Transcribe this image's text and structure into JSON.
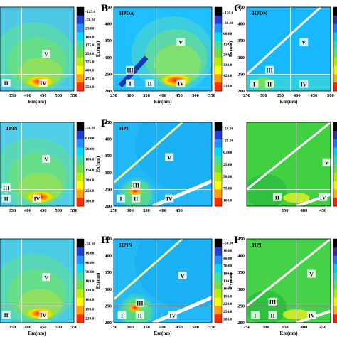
{
  "panels": [
    {
      "letter": "",
      "title": "",
      "xlabel": "Em(nm)",
      "ylabel": "",
      "xticks": [
        "350",
        "400",
        "450",
        "500",
        "550"
      ],
      "yticks": [],
      "colorbar_ticks": [
        "-125.0",
        "-50.00",
        "25.00",
        "100.0",
        "175.0",
        "250.0",
        "325.0",
        "400.0",
        "475.0",
        "550.0"
      ],
      "regions": [
        {
          "label": "I",
          "x": 250,
          "y": 255
        },
        {
          "label": "II",
          "x": 330,
          "y": 223
        },
        {
          "label": "IV",
          "x": 450,
          "y": 223
        },
        {
          "label": "V",
          "x": 460,
          "y": 310
        }
      ]
    },
    {
      "letter": "B",
      "title": "HPOA",
      "xlabel": "Em(nm)",
      "ylabel": "Ex(nm)",
      "xticks": [
        "250",
        "300",
        "350",
        "400",
        "450",
        "500",
        "550"
      ],
      "yticks": [
        "200",
        "250",
        "300",
        "350",
        "400",
        "450"
      ],
      "colorbar_ticks": [
        "-120.0",
        "-30.00",
        "60.00",
        "150.0",
        "240.0",
        "330.0",
        "420.0",
        "510.0"
      ],
      "colorbar_ticks_b": [
        "1320",
        "1510",
        "1700"
      ],
      "regions": [
        {
          "label": "I",
          "x": 300,
          "y": 222
        },
        {
          "label": "II",
          "x": 360,
          "y": 222
        },
        {
          "label": "III",
          "x": 300,
          "y": 262
        },
        {
          "label": "IV",
          "x": 455,
          "y": 222
        },
        {
          "label": "V",
          "x": 455,
          "y": 345
        }
      ]
    },
    {
      "letter": "C",
      "title": "HPON",
      "xlabel": "Em(nm)",
      "ylabel": "Ex(nm)",
      "xticks": [
        "250",
        "300",
        "350",
        "400",
        "450",
        "500"
      ],
      "yticks": [
        "200",
        "250",
        "300",
        "350",
        "400",
        "450"
      ],
      "colorbar_ticks": [
        "-36.00",
        "18.00",
        "72.00",
        "126.0",
        "180.0",
        "234.0",
        "288.0",
        "342.0"
      ],
      "regions": [
        {
          "label": "I",
          "x": 272,
          "y": 220
        },
        {
          "label": "II",
          "x": 318,
          "y": 220
        },
        {
          "label": "III",
          "x": 318,
          "y": 262
        },
        {
          "label": "IV",
          "x": 420,
          "y": 220
        },
        {
          "label": "V",
          "x": 420,
          "y": 345
        }
      ]
    },
    {
      "letter": "E",
      "title": "TPIN",
      "xlabel": "",
      "ylabel": "Ex(nm)",
      "xticks": [
        "250",
        "300",
        "350",
        "400",
        "450",
        "500",
        "550"
      ],
      "yticks": [
        "200",
        "250",
        "300",
        "350",
        "400",
        "450"
      ],
      "colorbar_ticks": [
        "-50.00",
        "0.000",
        "50.00",
        "100.0",
        "150.0",
        "200.0",
        "250.0",
        "300.0"
      ],
      "regions": [
        {
          "label": "I",
          "x": 275,
          "y": 222
        },
        {
          "label": "II",
          "x": 330,
          "y": 222
        },
        {
          "label": "III",
          "x": 330,
          "y": 255
        },
        {
          "label": "IV",
          "x": 430,
          "y": 222
        },
        {
          "label": "V",
          "x": 460,
          "y": 340
        }
      ]
    },
    {
      "letter": "F",
      "title": "HPI",
      "xlabel": "",
      "ylabel": "Ex(nm)",
      "xticks": [
        "250",
        "300",
        "350",
        "400",
        "450"
      ],
      "yticks": [
        "200",
        "250",
        "300",
        "350",
        "400",
        "450"
      ],
      "colorbar_ticks": [
        "-50.00",
        "-25.00",
        "0.000",
        "25.00",
        "50.00",
        "75.00",
        "100.0"
      ],
      "regions": [
        {
          "label": "I",
          "x": 272,
          "y": 222
        },
        {
          "label": "II",
          "x": 318,
          "y": 222
        },
        {
          "label": "III",
          "x": 318,
          "y": 262
        },
        {
          "label": "IV",
          "x": 420,
          "y": 222
        },
        {
          "label": "V",
          "x": 420,
          "y": 345
        }
      ]
    },
    {
      "letter": "",
      "title": "",
      "xlabel": "",
      "ylabel": "",
      "xticks": [
        "350",
        "400",
        "450",
        "500",
        "550"
      ],
      "yticks": [],
      "colorbar_ticks": [
        "-50.00",
        "0.000",
        "50.00",
        "100.0",
        "150.0",
        "200.0",
        "250.0"
      ],
      "regions": [
        {
          "label": "II",
          "x": 330,
          "y": 226
        },
        {
          "label": "IV",
          "x": 450,
          "y": 226
        },
        {
          "label": "V",
          "x": 460,
          "y": 330
        }
      ]
    },
    {
      "letter": "",
      "title": "",
      "xlabel": "Em(nm)",
      "ylabel": "",
      "xticks": [
        "350",
        "400",
        "450",
        "500",
        "550"
      ],
      "yticks": [],
      "colorbar_ticks": [
        "-50.00",
        "10.00",
        "40.00",
        "70.00",
        "100.0",
        "130.0",
        "160.0",
        "190.0",
        "220.0"
      ],
      "regions": [
        {
          "label": "II",
          "x": 330,
          "y": 223
        },
        {
          "label": "IV",
          "x": 450,
          "y": 223
        },
        {
          "label": "V",
          "x": 460,
          "y": 335
        }
      ]
    },
    {
      "letter": "H",
      "title": "HPIN",
      "xlabel": "Em(nm)",
      "ylabel": "Ex(nm)",
      "xticks": [
        "250",
        "300",
        "350",
        "400",
        "450",
        "500",
        "550"
      ],
      "yticks": [
        "200",
        "250",
        "300",
        "350",
        "400",
        "450"
      ],
      "colorbar_ticks": [
        "-50.00",
        "10.00",
        "40.00",
        "70.00",
        "100.0",
        "130.0",
        "160.0",
        "190.0",
        "220.0",
        "250.0",
        "280.0"
      ],
      "regions": [
        {
          "label": "I",
          "x": 275,
          "y": 222
        },
        {
          "label": "II",
          "x": 330,
          "y": 222
        },
        {
          "label": "III",
          "x": 330,
          "y": 258
        },
        {
          "label": "IV",
          "x": 430,
          "y": 222
        },
        {
          "label": "V",
          "x": 460,
          "y": 340
        }
      ]
    },
    {
      "letter": "I",
      "title": "HPI",
      "xlabel": "Em(nm)",
      "ylabel": "Ex(nm)",
      "xticks": [
        "250",
        "300",
        "350",
        "400",
        "450"
      ],
      "yticks": [
        "200",
        "250",
        "300",
        "350",
        "400",
        "450"
      ],
      "colorbar_ticks": [
        "-50.00",
        "-30.00",
        "-10.00",
        "10.00",
        "30.00",
        "50.00",
        "70.00"
      ],
      "regions": [
        {
          "label": "I",
          "x": 272,
          "y": 222
        },
        {
          "label": "II",
          "x": 318,
          "y": 222
        },
        {
          "label": "III",
          "x": 318,
          "y": 262
        },
        {
          "label": "IV",
          "x": 420,
          "y": 222
        },
        {
          "label": "V",
          "x": 420,
          "y": 345
        }
      ]
    }
  ],
  "chart_data": [
    {
      "type": "heatmap",
      "x_axis": "Em(nm)",
      "y_axis": "Ex(nm)",
      "xlim": [
        300,
        550
      ],
      "ylim": [
        200,
        450
      ],
      "colorbar": [
        -125,
        550
      ],
      "peaks": [
        {
          "region": "IV",
          "em": 440,
          "ex": 225
        }
      ]
    },
    {
      "type": "heatmap",
      "panel": "B",
      "title": "HPOA",
      "x_axis": "Em(nm)",
      "y_axis": "Ex(nm)",
      "xlim": [
        250,
        550
      ],
      "ylim": [
        200,
        450
      ],
      "colorbar": [
        -120,
        1700
      ],
      "peaks": [
        {
          "region": "IV",
          "em": 440,
          "ex": 228
        }
      ]
    },
    {
      "type": "heatmap",
      "panel": "C",
      "title": "HPON",
      "x_axis": "Em(nm)",
      "y_axis": "Ex(nm)",
      "xlim": [
        250,
        500
      ],
      "ylim": [
        200,
        450
      ],
      "colorbar": [
        -36,
        342
      ]
    },
    {
      "type": "heatmap",
      "panel": "E",
      "title": "TPIN",
      "x_axis": "Em(nm)",
      "y_axis": "Ex(nm)",
      "xlim": [
        250,
        550
      ],
      "ylim": [
        200,
        450
      ],
      "colorbar": [
        -50,
        300
      ],
      "peaks": [
        {
          "region": "III",
          "em": 310,
          "ex": 255
        }
      ]
    },
    {
      "type": "heatmap",
      "panel": "F",
      "title": "HPI",
      "x_axis": "Em(nm)",
      "y_axis": "Ex(nm)",
      "xlim": [
        250,
        470
      ],
      "ylim": [
        200,
        450
      ],
      "colorbar": [
        -50,
        100
      ]
    },
    {
      "type": "heatmap",
      "x_axis": "Em(nm)",
      "y_axis": "Ex(nm)",
      "xlim": [
        300,
        550
      ],
      "ylim": [
        200,
        450
      ],
      "colorbar": [
        -50,
        250
      ]
    },
    {
      "type": "heatmap",
      "x_axis": "Em(nm)",
      "y_axis": "Ex(nm)",
      "xlim": [
        300,
        550
      ],
      "ylim": [
        200,
        450
      ],
      "colorbar": [
        -50,
        220
      ]
    },
    {
      "type": "heatmap",
      "panel": "H",
      "title": "HPIN",
      "x_axis": "Em(nm)",
      "y_axis": "Ex(nm)",
      "xlim": [
        250,
        550
      ],
      "ylim": [
        200,
        450
      ],
      "colorbar": [
        -50,
        280
      ],
      "peaks": [
        {
          "region": "II",
          "em": 310,
          "ex": 225
        }
      ]
    },
    {
      "type": "heatmap",
      "panel": "I",
      "title": "HPI",
      "x_axis": "Em(nm)",
      "y_axis": "Ex(nm)",
      "xlim": [
        250,
        470
      ],
      "ylim": [
        200,
        450
      ],
      "colorbar": [
        -50,
        70
      ]
    }
  ]
}
